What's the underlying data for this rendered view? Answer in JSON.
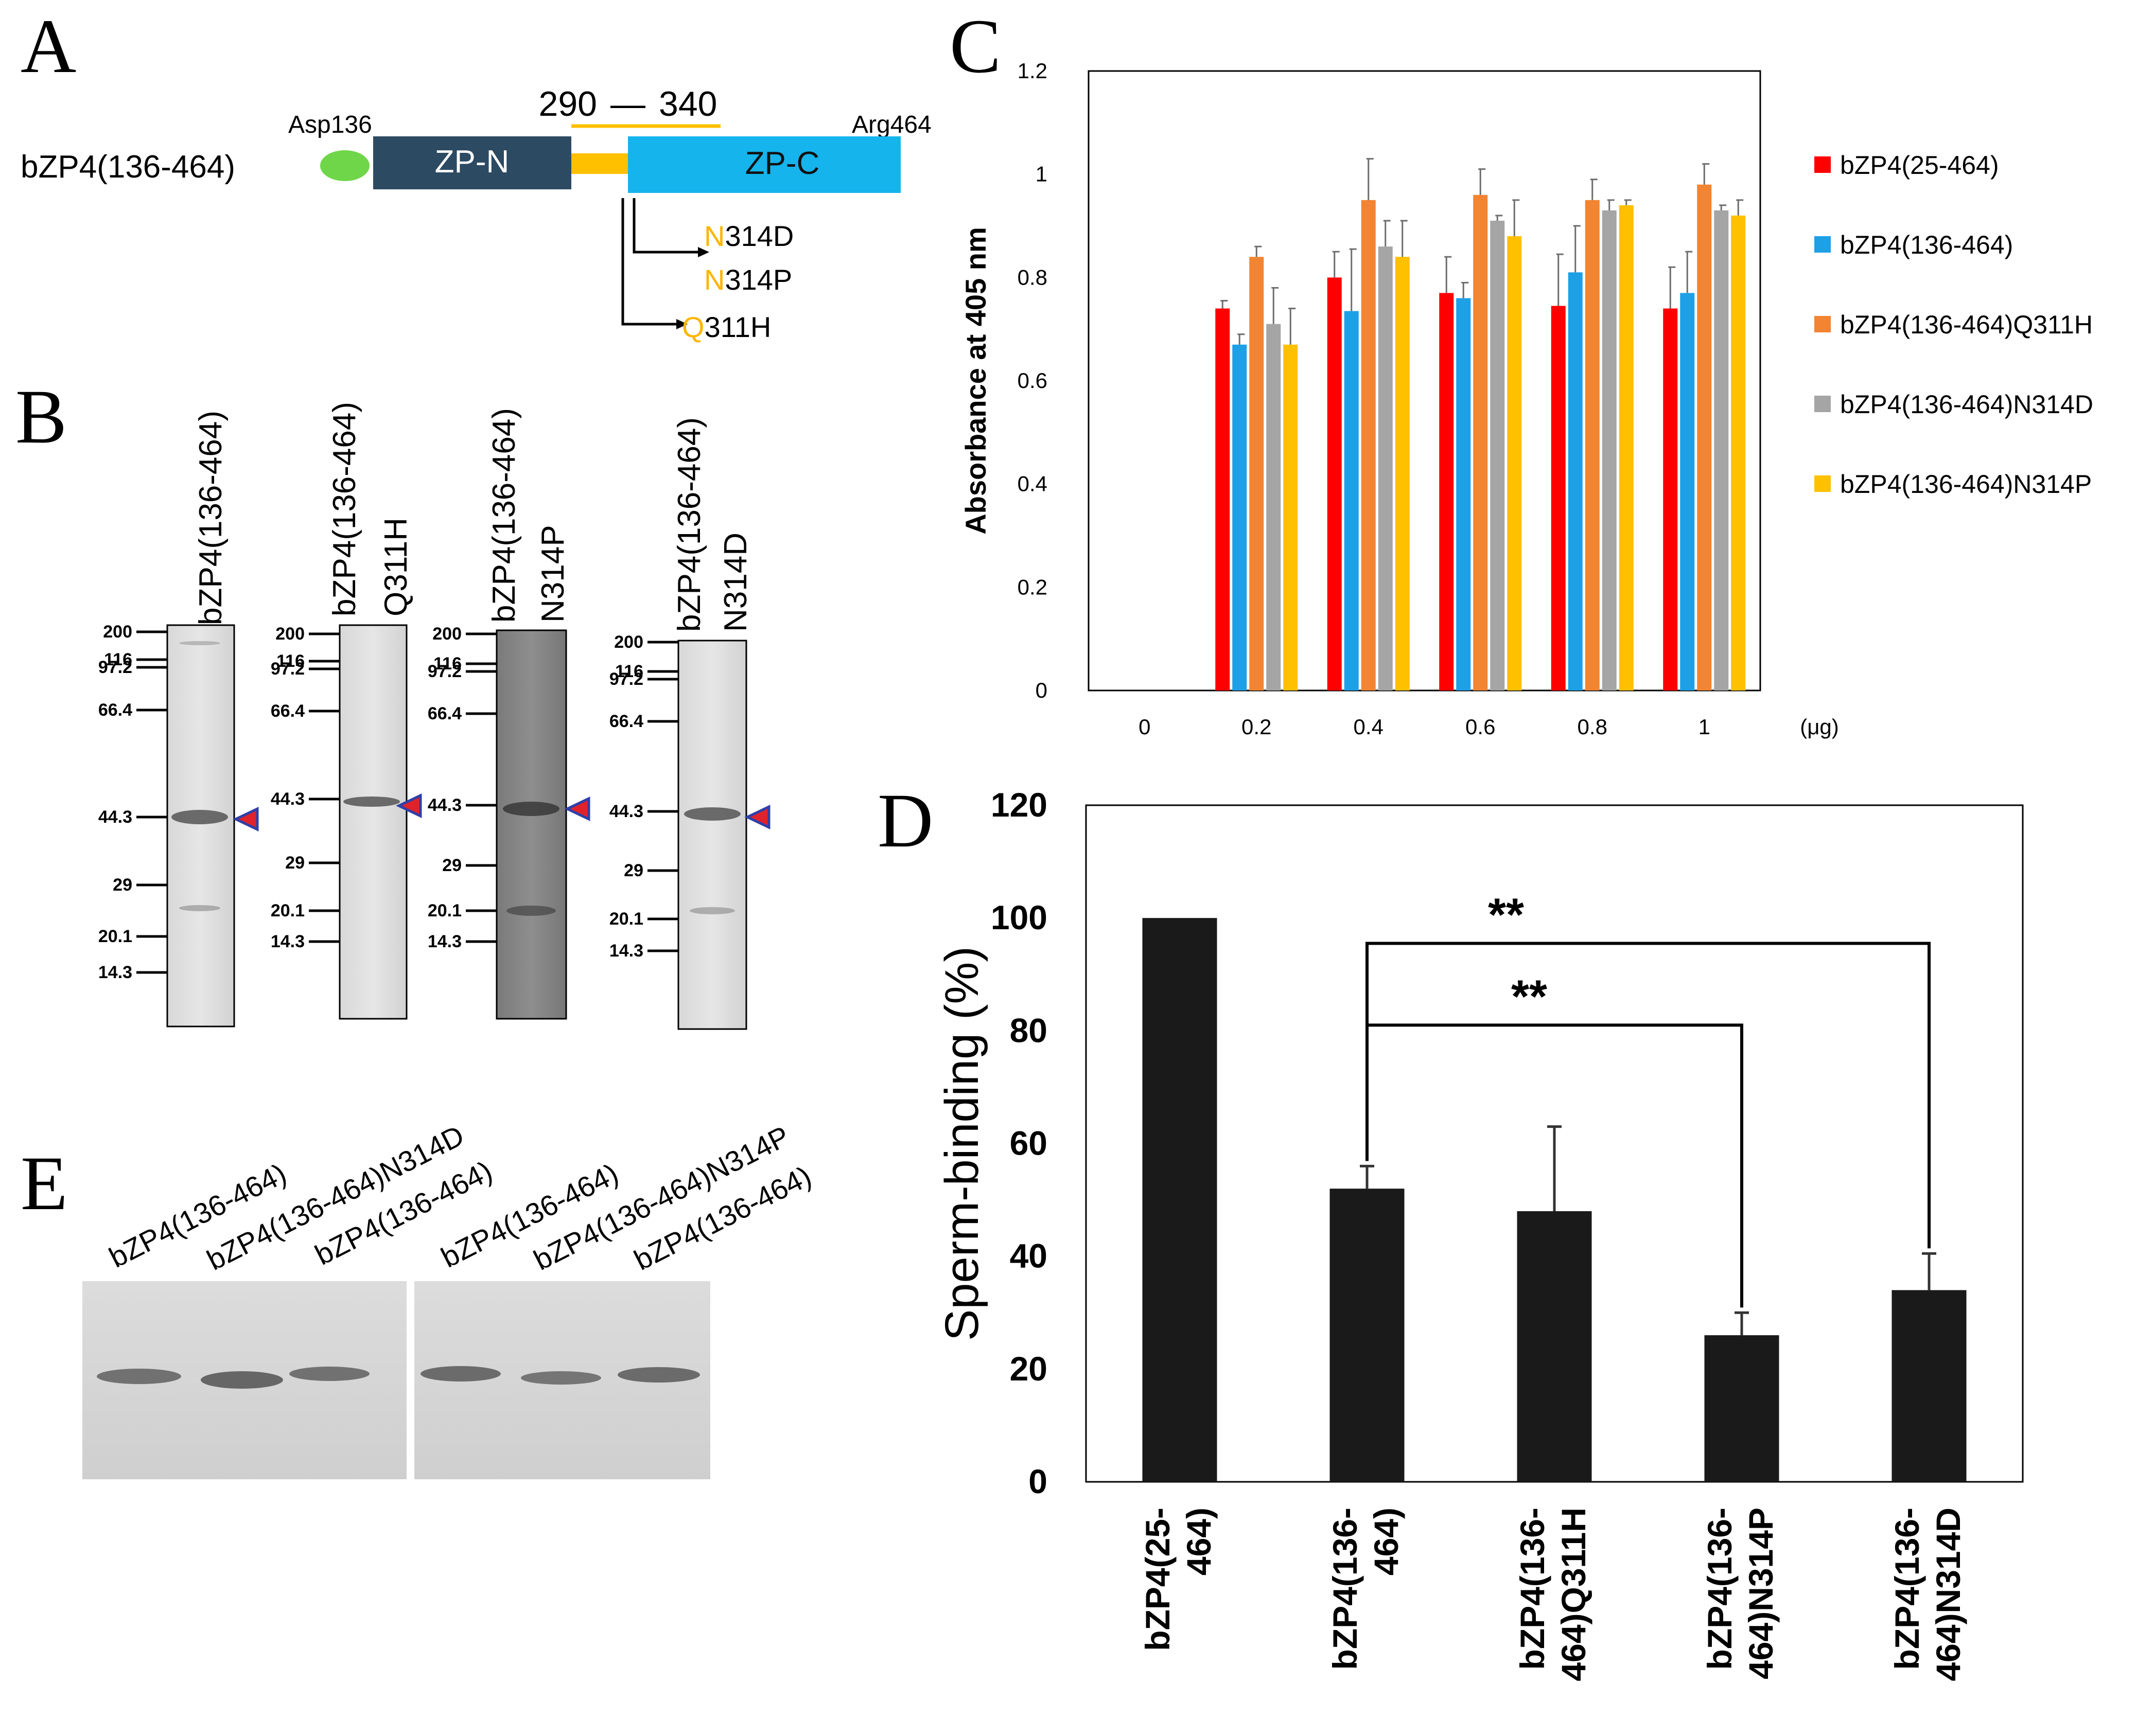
{
  "panel_letters": {
    "a": "A",
    "b": "B",
    "c": "C",
    "d": "D",
    "e": "E"
  },
  "panel_a": {
    "construct": "bZP4(136-464)",
    "start_residue": "Asp136",
    "end_residue": "Arg464",
    "zp_n": "ZP-N",
    "zp_c": "ZP-C",
    "region_start": "290",
    "region_dash": "—",
    "region_end": "340",
    "mutations": [
      {
        "aa": "N",
        "pos": "314D"
      },
      {
        "aa": "N",
        "pos": "314P"
      },
      {
        "aa": "Q",
        "pos": "311H"
      }
    ],
    "colors": {
      "zp_n": "#2d4a63",
      "zp_c": "#16b4ec",
      "linker": "#ffc000",
      "asp": "#6fd64a",
      "mut": "#ffb400"
    }
  },
  "panel_b": {
    "gels": [
      {
        "label1": "bZP4(136-464)",
        "label2": "",
        "markers": [
          "200",
          "116",
          "97.2",
          "66.4",
          "44.3",
          "29",
          "20.1",
          "14.3"
        ]
      },
      {
        "label1": "bZP4(136-464)",
        "label2": "Q311H",
        "markers": [
          "200",
          "116",
          "97.2",
          "66.4",
          "44.3",
          "29",
          "20.1",
          "14.3"
        ]
      },
      {
        "label1": "bZP4(136-464)",
        "label2": "N314P",
        "markers": [
          "200",
          "116",
          "97.2",
          "66.4",
          "44.3",
          "29",
          "20.1",
          "14.3"
        ]
      },
      {
        "label1": "bZP4(136-464)",
        "label2": "N314D",
        "markers": [
          "200",
          "116",
          "97.2",
          "66.4",
          "44.3",
          "29",
          "20.1",
          "14.3"
        ]
      }
    ]
  },
  "panel_e": {
    "lanes": [
      "bZP4(136-464)",
      "bZP4(136-464)N314D",
      "bZP4(136-464)",
      "bZP4(136-464)",
      "bZP4(136-464)N314P",
      "bZP4(136-464)"
    ]
  },
  "chart_data": [
    {
      "type": "bar",
      "panel": "C",
      "title": "",
      "xlabel": "",
      "ylabel": "Absorbance at 405 nm",
      "x_unit": "(μg)",
      "categories": [
        "0",
        "0.2",
        "0.4",
        "0.6",
        "0.8",
        "1"
      ],
      "yticks": [
        "0",
        "0.2",
        "0.4",
        "0.6",
        "0.8",
        "1",
        "1.2"
      ],
      "ylim": [
        0,
        1.2
      ],
      "legend_position": "right",
      "series": [
        {
          "name": "bZP4(25-464)",
          "color": "#ff0000",
          "values": [
            0,
            0.74,
            0.8,
            0.77,
            0.745,
            0.74
          ],
          "errors": [
            0,
            0.015,
            0.05,
            0.07,
            0.1,
            0.08
          ]
        },
        {
          "name": "bZP4(136-464)",
          "color": "#1ea0e6",
          "values": [
            0,
            0.67,
            0.735,
            0.76,
            0.81,
            0.77
          ],
          "errors": [
            0,
            0.02,
            0.12,
            0.03,
            0.09,
            0.08
          ]
        },
        {
          "name": "bZP4(136-464)Q311H",
          "color": "#f28432",
          "values": [
            0,
            0.84,
            0.95,
            0.96,
            0.95,
            0.98
          ],
          "errors": [
            0,
            0.02,
            0.08,
            0.05,
            0.04,
            0.04
          ]
        },
        {
          "name": "bZP4(136-464)N314D",
          "color": "#a5a5a5",
          "values": [
            0,
            0.71,
            0.86,
            0.91,
            0.93,
            0.93
          ],
          "errors": [
            0,
            0.07,
            0.05,
            0.01,
            0.02,
            0.01
          ]
        },
        {
          "name": "bZP4(136-464)N314P",
          "color": "#ffc000",
          "values": [
            0,
            0.67,
            0.84,
            0.88,
            0.94,
            0.92
          ],
          "errors": [
            0,
            0.07,
            0.07,
            0.07,
            0.01,
            0.03
          ]
        }
      ]
    },
    {
      "type": "bar",
      "panel": "D",
      "title": "",
      "xlabel": "",
      "ylabel": "Sperm-binding (%)",
      "categories": [
        [
          "bZP4(25-",
          "464)"
        ],
        [
          "bZP4(136-",
          "464)"
        ],
        [
          "bZP4(136-",
          "464)Q311H"
        ],
        [
          "bZP4(136-",
          "464)N314P"
        ],
        [
          "bZP4(136-",
          "464)N314D"
        ]
      ],
      "values": [
        100,
        52,
        48,
        26,
        34
      ],
      "errors": [
        0,
        4,
        15,
        4,
        6.5
      ],
      "yticks": [
        "0",
        "20",
        "40",
        "60",
        "80",
        "100",
        "120"
      ],
      "ylim": [
        0,
        120
      ],
      "color": "#1a1a1a",
      "annotations": [
        {
          "text": "**",
          "from": 1,
          "to": 3,
          "level": 81
        },
        {
          "text": "**",
          "from": 1,
          "to": 4,
          "level": 95.5
        }
      ]
    }
  ]
}
